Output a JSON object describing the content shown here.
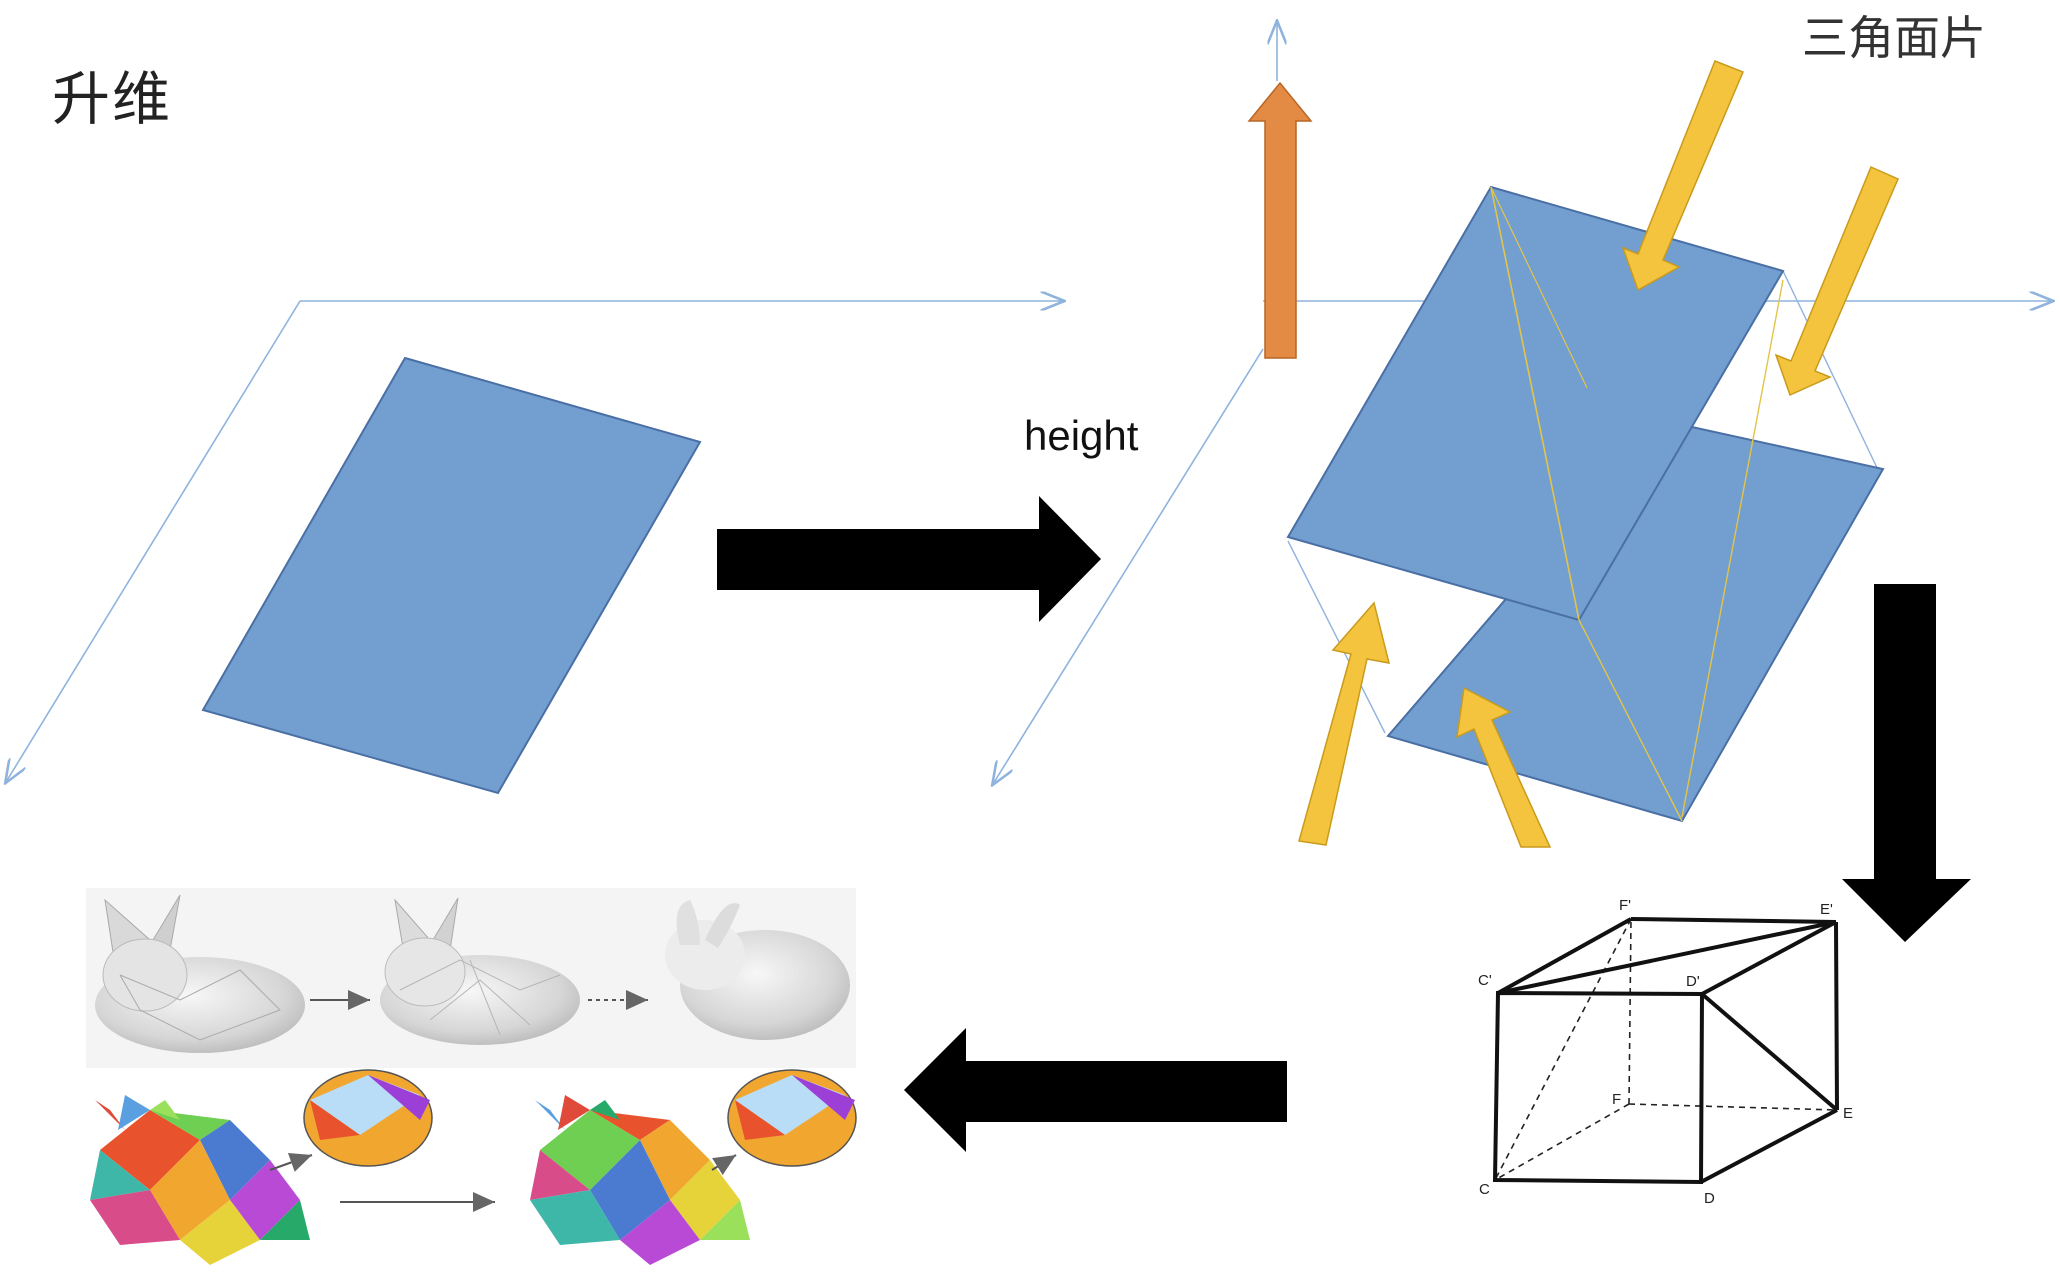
{
  "slide": {
    "title": "升维",
    "corner_label": "三角面片",
    "arrow_label": "height"
  },
  "cube": {
    "vertex_labels": {
      "C": "C",
      "D": "D",
      "E": "E",
      "F": "F",
      "C_prime": "C'",
      "D_prime": "D'",
      "E_prime": "E'",
      "F_prime": "F'"
    }
  },
  "colors": {
    "plane_fill": "#729fcf",
    "plane_edge": "#4a6fa5",
    "axis_line": "#8fb3dc",
    "height_arrow": "#e38a44",
    "projection_arrow": "#f4c43e",
    "flow_arrow": "#000000"
  },
  "icons": {
    "flow_right": "arrow-right-icon",
    "flow_down": "arrow-down-icon",
    "flow_left": "arrow-left-icon"
  }
}
